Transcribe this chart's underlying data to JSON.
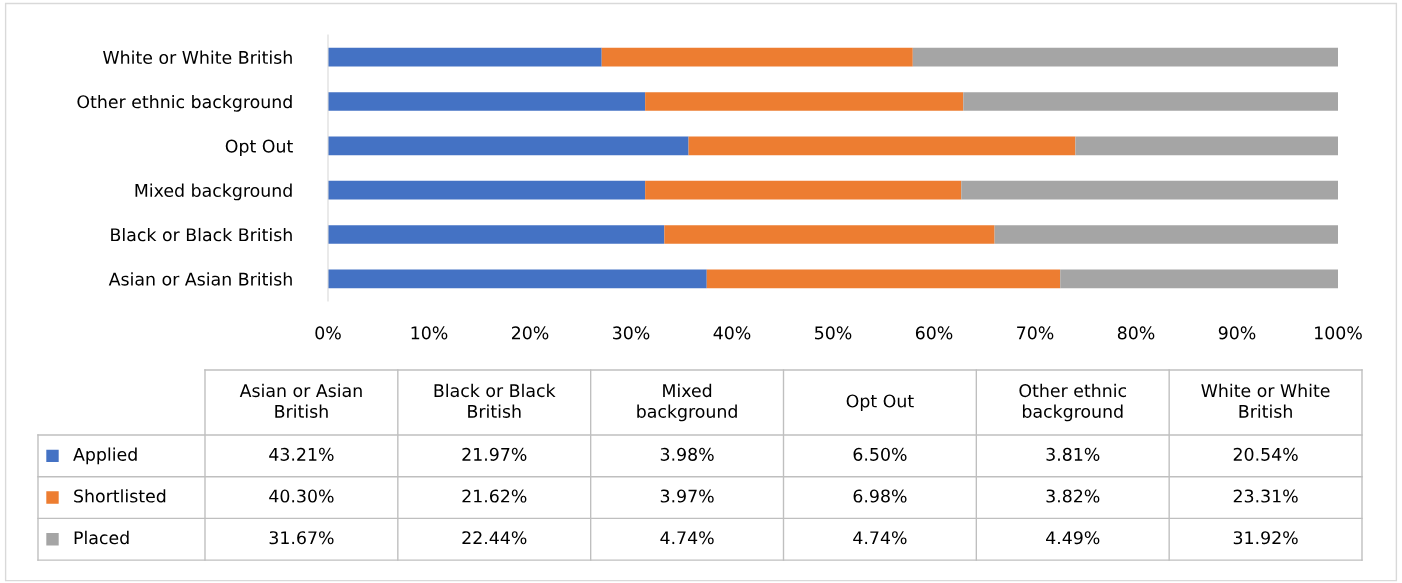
{
  "chart_data": {
    "type": "bar",
    "orientation": "horizontal",
    "stacked": true,
    "categories": [
      "White or White British",
      "Other ethnic background",
      "Opt Out",
      "Mixed background",
      "Black or Black British",
      "Asian or Asian British"
    ],
    "series": [
      {
        "name": "Applied",
        "color": "#4472c4",
        "values": [
          27.1,
          31.4,
          35.7,
          31.4,
          33.3,
          37.5
        ]
      },
      {
        "name": "Shortlisted",
        "color": "#ed7d31",
        "values": [
          30.8,
          31.5,
          38.3,
          31.3,
          32.7,
          35.0
        ]
      },
      {
        "name": "Placed",
        "color": "#a5a5a5",
        "values": [
          42.1,
          37.1,
          26.0,
          37.3,
          34.0,
          27.5
        ]
      }
    ],
    "annotations": [
      "43.21%",
      "21.97%",
      "3.98%",
      "6.50%",
      "3.81%",
      "20.54%",
      "40.30%",
      "21.62%",
      "3.97%",
      "6.98%",
      "3.82%",
      "23.31%",
      "31.67%",
      "22.44%",
      "4.74%",
      "4.74%",
      "4.49%",
      "31.92%"
    ],
    "xlim": [
      0,
      100
    ],
    "xticks": [
      {
        "value": 0,
        "label": "0%"
      },
      {
        "value": 10,
        "label": "10%"
      },
      {
        "value": 20,
        "label": "20%"
      },
      {
        "value": 30,
        "label": "30%"
      },
      {
        "value": 40,
        "label": "40%"
      },
      {
        "value": 50,
        "label": "50%"
      },
      {
        "value": 60,
        "label": "60%"
      },
      {
        "value": 70,
        "label": "70%"
      },
      {
        "value": 80,
        "label": "80%"
      },
      {
        "value": 90,
        "label": "90%"
      },
      {
        "value": 100,
        "label": "100%"
      }
    ],
    "grid": false,
    "legend": "bottom left"
  }
}
